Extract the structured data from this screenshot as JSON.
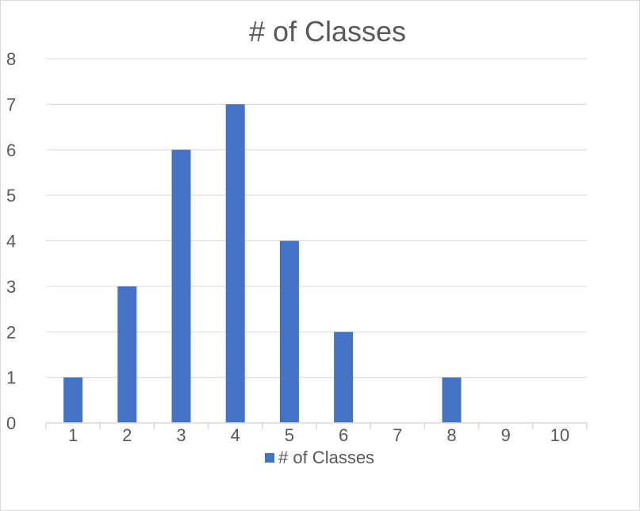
{
  "chart_data": {
    "type": "bar",
    "title": "# of Classes",
    "xlabel": "",
    "ylabel": "",
    "categories": [
      "1",
      "2",
      "3",
      "4",
      "5",
      "6",
      "7",
      "8",
      "9",
      "10"
    ],
    "series": [
      {
        "name": "# of Classes",
        "values": [
          1,
          3,
          6,
          7,
          4,
          2,
          0,
          1,
          0,
          0
        ],
        "color": "#4472C4"
      }
    ],
    "ylim": [
      0,
      8
    ],
    "yticks": [
      "0",
      "1",
      "2",
      "3",
      "4",
      "5",
      "6",
      "7",
      "8"
    ],
    "grid": true,
    "legend": "bottom"
  }
}
